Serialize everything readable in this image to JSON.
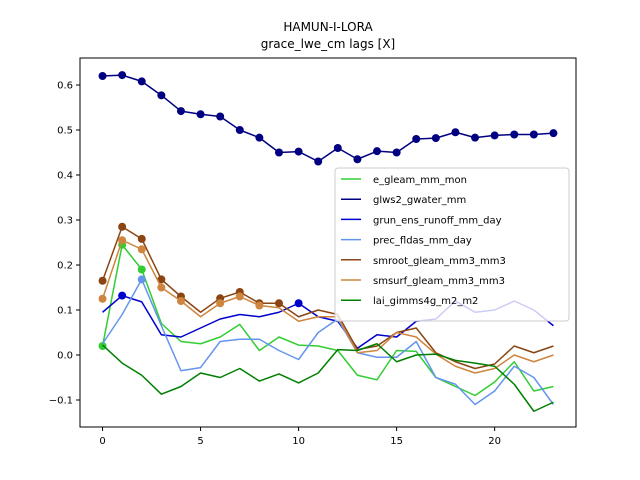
{
  "chart_data": {
    "type": "line",
    "title": "HAMUN-I-LORA",
    "subtitle": "grace_lwe_cm lags [X]",
    "xlabel": "",
    "ylabel": "",
    "xlim": [
      -1.15,
      24.15
    ],
    "ylim": [
      -0.16,
      0.66
    ],
    "x_ticks": [
      0,
      5,
      10,
      15,
      20
    ],
    "y_ticks": [
      -0.1,
      0.0,
      0.1,
      0.2,
      0.3,
      0.4,
      0.5,
      0.6
    ],
    "y_tick_labels": [
      "−0.1",
      "0.0",
      "0.1",
      "0.2",
      "0.3",
      "0.4",
      "0.5",
      "0.6"
    ],
    "grid": false,
    "legend_position": "center-right",
    "x": [
      0,
      1,
      2,
      3,
      4,
      5,
      6,
      7,
      8,
      9,
      10,
      11,
      12,
      13,
      14,
      15,
      16,
      17,
      18,
      19,
      20,
      21,
      22,
      23
    ],
    "series": [
      {
        "name": "e_gleam_mm_mon",
        "color": "#32cd32",
        "values": [
          0.02,
          0.245,
          0.19,
          0.07,
          0.03,
          0.025,
          0.04,
          0.068,
          0.01,
          0.04,
          0.022,
          0.02,
          0.01,
          -0.045,
          -0.055,
          0.01,
          0.008,
          -0.05,
          -0.07,
          -0.09,
          -0.06,
          -0.015,
          -0.08,
          -0.07
        ],
        "markers": [
          0,
          1,
          2
        ]
      },
      {
        "name": "glws2_gwater_mm",
        "color": "#000080",
        "values": [
          0.62,
          0.622,
          0.608,
          0.577,
          0.542,
          0.535,
          0.53,
          0.5,
          0.483,
          0.45,
          0.452,
          0.43,
          0.46,
          0.435,
          0.453,
          0.45,
          0.48,
          0.482,
          0.495,
          0.483,
          0.488,
          0.49,
          0.49,
          0.493
        ],
        "markers": "all"
      },
      {
        "name": "grun_ens_runoff_mm_day",
        "color": "#0000cd",
        "values": [
          0.095,
          0.132,
          0.118,
          0.045,
          0.04,
          0.06,
          0.08,
          0.09,
          0.085,
          0.095,
          0.115,
          0.085,
          0.075,
          0.015,
          0.045,
          0.04,
          0.075,
          0.08,
          0.12,
          0.095,
          0.1,
          0.12,
          0.1,
          0.065
        ],
        "markers": [
          1,
          10
        ]
      },
      {
        "name": "prec_fldas_mm_day",
        "color": "#6495ed",
        "values": [
          0.025,
          0.09,
          0.168,
          0.065,
          -0.035,
          -0.028,
          0.03,
          0.035,
          0.035,
          0.01,
          -0.01,
          0.05,
          0.08,
          0.005,
          -0.005,
          -0.005,
          0.03,
          -0.05,
          -0.065,
          -0.11,
          -0.08,
          -0.025,
          -0.05,
          -0.11
        ],
        "markers": [
          2
        ]
      },
      {
        "name": "smroot_gleam_mm3_mm3",
        "color": "#8b4513",
        "values": [
          0.165,
          0.285,
          0.258,
          0.168,
          0.13,
          0.095,
          0.126,
          0.14,
          0.115,
          0.115,
          0.085,
          0.1,
          0.09,
          0.012,
          0.02,
          0.05,
          0.06,
          0.005,
          -0.015,
          -0.03,
          -0.02,
          0.02,
          0.005,
          0.02
        ],
        "markers": [
          0,
          1,
          2,
          3,
          4,
          6,
          7,
          8,
          9
        ]
      },
      {
        "name": "smsurf_gleam_mm3_mm3",
        "color": "#cd853f",
        "values": [
          0.125,
          0.255,
          0.235,
          0.15,
          0.12,
          0.085,
          0.115,
          0.13,
          0.11,
          0.105,
          0.075,
          0.085,
          0.085,
          0.005,
          0.01,
          0.05,
          0.04,
          0.002,
          -0.025,
          -0.04,
          -0.03,
          0.0,
          -0.015,
          0.0
        ],
        "markers": [
          0,
          1,
          2,
          3,
          4,
          6,
          7,
          8
        ]
      },
      {
        "name": "lai_gimms4g_m2_m2",
        "color": "#008000",
        "values": [
          0.022,
          -0.018,
          -0.045,
          -0.087,
          -0.07,
          -0.04,
          -0.05,
          -0.03,
          -0.058,
          -0.042,
          -0.062,
          -0.04,
          0.012,
          0.01,
          0.025,
          -0.015,
          0.0,
          0.002,
          -0.012,
          -0.018,
          -0.025,
          -0.065,
          -0.125,
          -0.105
        ],
        "markers": []
      }
    ]
  }
}
